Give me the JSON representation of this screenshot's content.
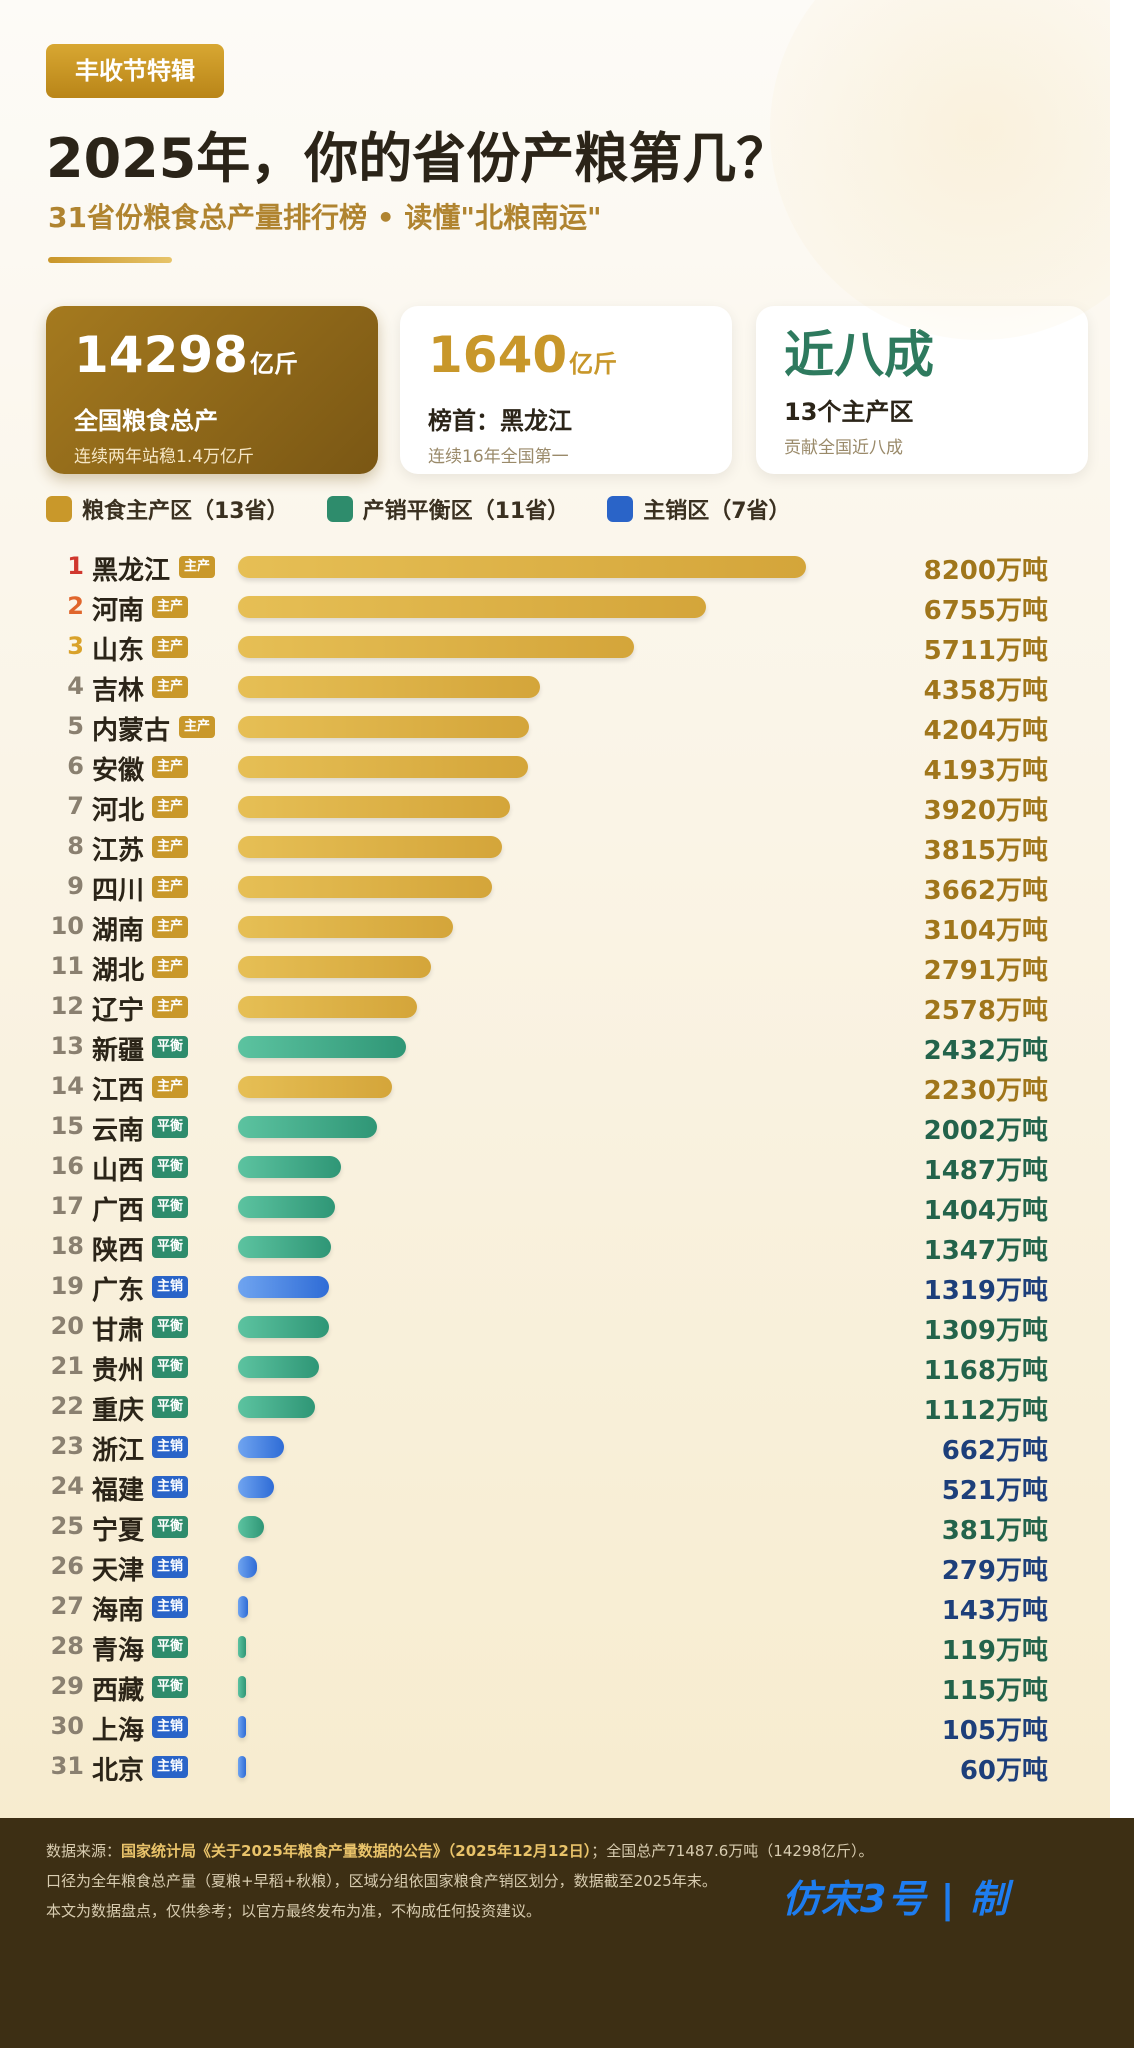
{
  "header": {
    "tag": "丰收节特辑",
    "title": "2025年，你的省份产粮第几？",
    "subtitle": "31省份粮食总产量排行榜 • 读懂\"北粮南运\""
  },
  "stats": [
    {
      "big": "14298",
      "unit": "亿斤",
      "label": "全国粮食总产",
      "note": "连续两年站稳1.4万亿斤"
    },
    {
      "big": "1640",
      "unit": "亿斤",
      "label": "榜首：黑龙江",
      "note": "连续16年全国第一"
    },
    {
      "big": "近八成",
      "unit": "",
      "label": "13个主产区",
      "note": "贡献全国近八成"
    }
  ],
  "legend": [
    {
      "label": "粮食主产区（13省）",
      "color": "#c9982a"
    },
    {
      "label": "产销平衡区（11省）",
      "color": "#2e8c6c"
    },
    {
      "label": "主销区（7省）",
      "color": "#2a64c8"
    }
  ],
  "colors": {
    "main": "#d6a93a",
    "balance": "#3aa888",
    "sales": "#3f7fe0",
    "main_text": "#a0761b",
    "balance_text": "#23634b",
    "sales_text": "#1d3f7a"
  },
  "chart_data": {
    "type": "bar",
    "orientation": "horizontal",
    "unit": "万吨",
    "categories": [
      "黑龙江",
      "河南",
      "山东",
      "吉林",
      "内蒙古",
      "安徽",
      "河北",
      "江苏",
      "四川",
      "湖南",
      "湖北",
      "辽宁",
      "新疆",
      "江西",
      "云南",
      "山西",
      "广西",
      "陕西",
      "广东",
      "甘肃",
      "贵州",
      "重庆",
      "浙江",
      "福建",
      "宁夏",
      "天津",
      "海南",
      "青海",
      "西藏",
      "上海",
      "北京"
    ],
    "values": [
      8200,
      6755,
      5711,
      4358,
      4204,
      4193,
      3920,
      3815,
      3662,
      3104,
      2791,
      2578,
      2432,
      2230,
      2002,
      1487,
      1404,
      1347,
      1319,
      1309,
      1168,
      1112,
      662,
      521,
      381,
      279,
      143,
      119,
      115,
      105,
      60
    ],
    "region_type": [
      "main",
      "main",
      "main",
      "main",
      "main",
      "main",
      "main",
      "main",
      "main",
      "main",
      "main",
      "main",
      "balance",
      "main",
      "balance",
      "balance",
      "balance",
      "balance",
      "sales",
      "balance",
      "balance",
      "balance",
      "sales",
      "sales",
      "balance",
      "sales",
      "sales",
      "balance",
      "balance",
      "sales",
      "sales"
    ],
    "badges": {
      "main": "主产",
      "balance": "平衡",
      "sales": "主销"
    },
    "value_labels": [
      "8200万吨",
      "6755万吨",
      "5711万吨",
      "4358万吨",
      "4204万吨",
      "4193万吨",
      "3920万吨",
      "3815万吨",
      "3662万吨",
      "3104万吨",
      "2791万吨",
      "2578万吨",
      "2432万吨",
      "2230万吨",
      "2002万吨",
      "1487万吨",
      "1404万吨",
      "1347万吨",
      "1319万吨",
      "1309万吨",
      "1168万吨",
      "1112万吨",
      "662万吨",
      "521万吨",
      "381万吨",
      "279万吨",
      "143万吨",
      "119万吨",
      "115万吨",
      "105万吨",
      "60万吨"
    ]
  },
  "footer": {
    "line1_prefix": "数据来源：",
    "line1_source": "国家统计局《关于2025年粮食产量数据的公告》（2025年12月12日）",
    "line1_suffix": "；全国总产71487.6万吨（14298亿斤）。",
    "line2": "口径为全年粮食总产量（夏粮+早稻+秋粮），区域分组依国家粮食产销区划分，数据截至2025年末。",
    "line3": "本文为数据盘点，仅供参考；以官方最终发布为准，不构成任何投资建议。",
    "watermark": "仿宋3号 | 制"
  }
}
